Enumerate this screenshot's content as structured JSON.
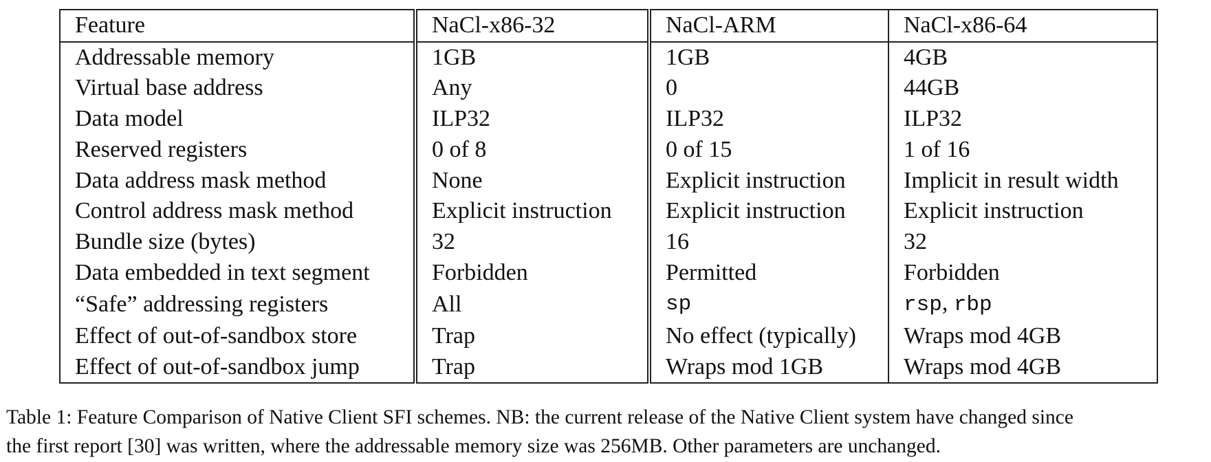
{
  "table": {
    "headers": [
      "Feature",
      "NaCl-x86-32",
      "NaCl-ARM",
      "NaCl-x86-64"
    ],
    "rows": [
      {
        "feature": "Addressable memory",
        "x86_32": "1GB",
        "arm": "1GB",
        "x86_64": "4GB"
      },
      {
        "feature": "Virtual base address",
        "x86_32": "Any",
        "arm": "0",
        "x86_64": "44GB"
      },
      {
        "feature": "Data model",
        "x86_32": "ILP32",
        "arm": "ILP32",
        "x86_64": "ILP32"
      },
      {
        "feature": "Reserved registers",
        "x86_32": "0 of 8",
        "arm": "0 of 15",
        "x86_64": "1 of 16"
      },
      {
        "feature": "Data address mask method",
        "x86_32": "None",
        "arm": "Explicit instruction",
        "x86_64": "Implicit in result width"
      },
      {
        "feature": "Control address mask method",
        "x86_32": "Explicit instruction",
        "arm": "Explicit instruction",
        "x86_64": "Explicit instruction"
      },
      {
        "feature": "Bundle size (bytes)",
        "x86_32": "32",
        "arm": "16",
        "x86_64": "32"
      },
      {
        "feature": "Data embedded in text segment",
        "x86_32": "Forbidden",
        "arm": "Permitted",
        "x86_64": "Forbidden"
      },
      {
        "feature": "“Safe” addressing registers",
        "x86_32": "All",
        "arm": "sp",
        "x86_64_parts": [
          "rsp",
          ", ",
          "rbp"
        ]
      },
      {
        "feature": "Effect of out-of-sandbox store",
        "x86_32": "Trap",
        "arm": "No effect (typically)",
        "x86_64": "Wraps mod 4GB"
      },
      {
        "feature": "Effect of out-of-sandbox jump",
        "x86_32": "Trap",
        "arm": "Wraps mod 1GB",
        "x86_64": "Wraps mod 4GB"
      }
    ]
  },
  "caption": {
    "line1": "Table 1: Feature Comparison of Native Client SFI schemes. NB: the current release of the Native Client system have changed since",
    "line2": "the first report [30] was written, where the addressable memory size was 256MB. Other parameters are unchanged."
  }
}
